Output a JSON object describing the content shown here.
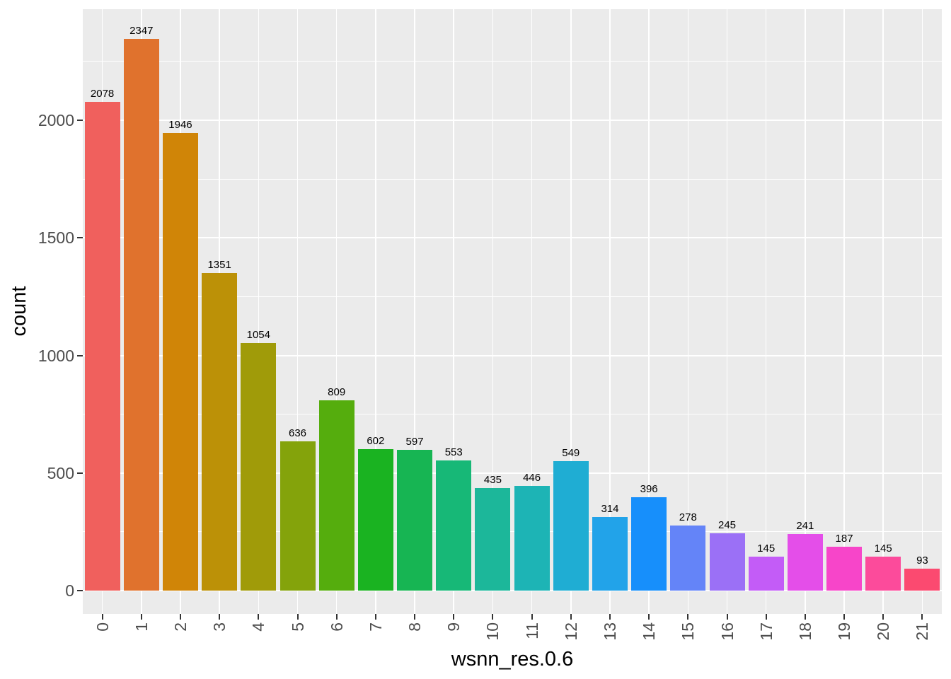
{
  "chart_data": {
    "type": "bar",
    "title": "",
    "xlabel": "wsnn_res.0.6",
    "ylabel": "count",
    "categories": [
      "0",
      "1",
      "2",
      "3",
      "4",
      "5",
      "6",
      "7",
      "8",
      "9",
      "10",
      "11",
      "12",
      "13",
      "14",
      "15",
      "16",
      "17",
      "18",
      "19",
      "20",
      "21"
    ],
    "values": [
      2078,
      2347,
      1946,
      1351,
      1054,
      636,
      809,
      602,
      597,
      553,
      435,
      446,
      549,
      314,
      396,
      278,
      245,
      145,
      241,
      187,
      145,
      93
    ],
    "value_labels": [
      "2078",
      "2347",
      "1946",
      "1351",
      "1054",
      "636",
      "809",
      "602",
      "597",
      "553",
      "435",
      "446",
      "549",
      "314",
      "396",
      "278",
      "245",
      "145",
      "241",
      "187",
      "145",
      "93"
    ],
    "bar_colors": [
      "#F0605D",
      "#E0722D",
      "#D08507",
      "#BC9107",
      "#A09B09",
      "#84A30B",
      "#55AD0D",
      "#1AB321",
      "#17B553",
      "#17B877",
      "#1CB79A",
      "#1DB4B5",
      "#1FADD3",
      "#22A3E9",
      "#178FFB",
      "#6484F8",
      "#9B70F6",
      "#C35CF7",
      "#E44EE9",
      "#F745C9",
      "#FC4B9B",
      "#FB4A70"
    ],
    "y_ticks": [
      0,
      500,
      1000,
      1500,
      2000
    ],
    "y_tick_labels": [
      "0",
      "500",
      "1000",
      "1500",
      "2000"
    ],
    "y_minor_ticks": [
      250,
      750,
      1250,
      1750,
      2250
    ],
    "ylim": [
      -120,
      2470
    ],
    "grid": "major-and-minor, white on gray panel",
    "legend_position": "none",
    "colors": {
      "panel_background": "#EBEBEB",
      "grid": "#FFFFFF",
      "tick_label": "#4D4D4D",
      "tick_mark": "#333333",
      "axis_title": "#000000",
      "value_label": "#000000",
      "figure_background": "#FFFFFF"
    }
  }
}
